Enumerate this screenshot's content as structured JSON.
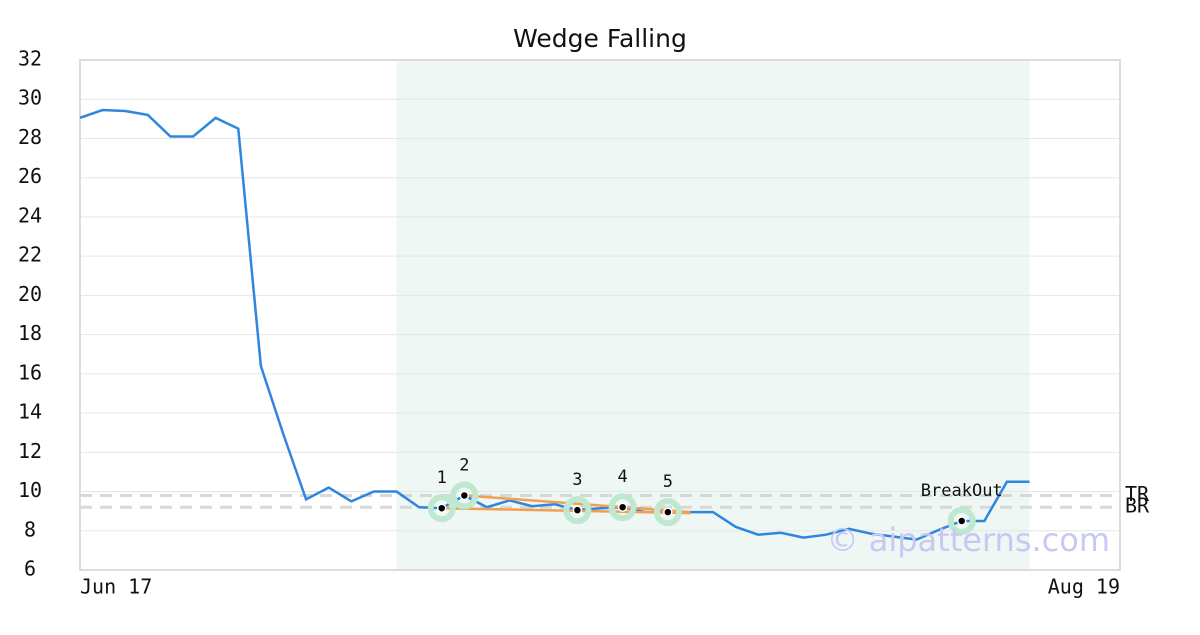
{
  "chart_data": {
    "type": "line",
    "title": "Wedge Falling",
    "x": [
      0,
      1,
      2,
      3,
      4,
      5,
      6,
      7,
      8,
      9,
      10,
      11,
      12,
      13,
      14,
      15,
      16,
      17,
      18,
      19,
      20,
      21,
      22,
      23,
      24,
      25,
      26,
      27,
      28,
      29,
      30,
      31,
      32,
      33,
      34,
      35,
      36,
      37,
      38,
      39,
      40,
      41,
      42
    ],
    "series": [
      {
        "color": "#2e86de",
        "values": [
          29.05,
          29.45,
          29.4,
          29.2,
          28.1,
          28.1,
          29.05,
          28.5,
          16.4,
          12.9,
          9.6,
          10.2,
          9.5,
          10.0,
          10.0,
          9.2,
          9.15,
          9.8,
          9.2,
          9.55,
          9.25,
          9.35,
          9.05,
          9.15,
          9.2,
          8.95,
          8.95,
          8.95,
          8.95,
          8.2,
          7.8,
          7.9,
          7.65,
          7.8,
          8.1,
          7.85,
          7.7,
          7.55,
          8.05,
          8.5,
          8.5,
          10.5,
          10.5
        ]
      }
    ],
    "xlim": [
      0,
      46
    ],
    "xticks": [
      {
        "value": 0,
        "label": "Jun 17"
      },
      {
        "value": 46,
        "label": "Aug 19"
      }
    ],
    "ylim": [
      6,
      32
    ],
    "yticks": [
      6,
      8,
      10,
      12,
      14,
      16,
      18,
      20,
      22,
      24,
      26,
      28,
      30,
      32
    ],
    "grid": true,
    "highlight_range": [
      14,
      42
    ],
    "markers": [
      {
        "label": "1",
        "x": 16,
        "value": 9.15
      },
      {
        "label": "2",
        "x": 17,
        "value": 9.8
      },
      {
        "label": "3",
        "x": 22,
        "value": 9.05
      },
      {
        "label": "4",
        "x": 24,
        "value": 9.2
      },
      {
        "label": "5",
        "x": 26,
        "value": 8.95
      },
      {
        "label": "BreakOut",
        "x": 39,
        "value": 8.5
      }
    ],
    "trend_lines": [
      {
        "x": [
          17,
          27
        ],
        "values": [
          9.8,
          8.95
        ]
      },
      {
        "x": [
          16,
          27
        ],
        "values": [
          9.15,
          8.9
        ]
      }
    ],
    "levels": [
      {
        "label": "TR",
        "value": 9.8
      },
      {
        "label": "BR",
        "value": 9.2
      }
    ],
    "watermark": "© aipatterns.com"
  }
}
